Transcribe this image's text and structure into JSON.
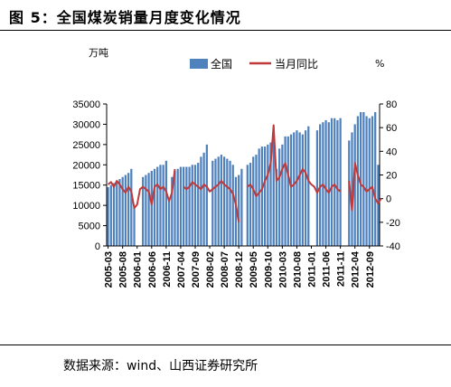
{
  "title": "图 5：全国煤炭销量月度变化情况",
  "source": "数据来源：wind、山西证券研究所",
  "colors": {
    "bar": "#4F81BD",
    "line": "#C0393B",
    "axis": "#000000"
  },
  "chart_data": {
    "type": "bar",
    "y_unit_left": "万吨",
    "y_unit_right": "%",
    "legend": [
      "全国",
      "当月同比"
    ],
    "legend_placement": "top-center",
    "grid": false,
    "ylim_left": [
      0,
      35000
    ],
    "yticks_left": [
      "0",
      "5000",
      "10000",
      "15000",
      "20000",
      "25000",
      "30000",
      "35000"
    ],
    "ylim_right": [
      -40,
      80
    ],
    "yticks_right": [
      "-40",
      "-20",
      "0",
      "20",
      "40",
      "60",
      "80"
    ],
    "category_labels": [
      "2005-03",
      "2005-08",
      "2006-01",
      "2006-06",
      "2006-11",
      "2007-04",
      "2007-09",
      "2008-02",
      "2008-07",
      "2008-12",
      "2009-05",
      "2009-10",
      "2010-03",
      "2010-08",
      "2011-01",
      "2011-06",
      "2011-11",
      "2012-04",
      "2012-09"
    ],
    "x_start": "2005-03",
    "series": [
      {
        "name": "全国",
        "type": "bar",
        "axis": "left",
        "values": [
          14500,
          15000,
          15500,
          16000,
          16500,
          17000,
          17500,
          18000,
          19000,
          9500,
          15500,
          16000,
          17000,
          17500,
          18000,
          18500,
          19000,
          19500,
          20000,
          20000,
          21000,
          11500,
          17000,
          18500,
          19000,
          19500,
          19500,
          19500,
          19500,
          20000,
          20000,
          20500,
          22000,
          23000,
          25000,
          12500,
          21000,
          21500,
          22000,
          22500,
          22000,
          21500,
          21000,
          20000,
          17000,
          17500,
          19000,
          8500,
          20000,
          20500,
          22000,
          22500,
          24000,
          24500,
          24500,
          25000,
          25500,
          26500,
          19000,
          24000,
          25000,
          27000,
          27000,
          27500,
          28000,
          28500,
          28000,
          27500,
          28500,
          29500,
          17500,
          20500,
          28500,
          30000,
          30500,
          31000,
          30500,
          31500,
          31500,
          31000,
          31500,
          31000,
          10000,
          26000,
          28000,
          30000,
          32000,
          33000,
          33000,
          32000,
          31500,
          32000,
          33000,
          20000
        ],
        "gaps": [
          10,
          11,
          35,
          47,
          70,
          71,
          81,
          82
        ]
      },
      {
        "name": "当月同比",
        "type": "line",
        "axis": "right",
        "values": [
          12,
          14,
          10,
          15,
          12,
          8,
          5,
          10,
          6,
          -8,
          -5,
          8,
          10,
          8,
          6,
          -5,
          10,
          12,
          8,
          10,
          6,
          -2,
          5,
          25,
          15,
          12,
          10,
          8,
          10,
          14,
          12,
          10,
          8,
          12,
          10,
          6,
          8,
          10,
          12,
          15,
          12,
          10,
          8,
          4,
          -5,
          -20,
          -5,
          5,
          10,
          12,
          8,
          2,
          5,
          8,
          15,
          20,
          30,
          62,
          15,
          18,
          25,
          30,
          20,
          10,
          12,
          15,
          20,
          25,
          22,
          15,
          12,
          10,
          5,
          10,
          12,
          8,
          5,
          10,
          12,
          8,
          6,
          10,
          8,
          15,
          -10,
          30,
          20,
          12,
          10,
          6,
          8,
          10,
          0,
          -4,
          0
        ],
        "gaps": [
          24,
          25,
          46,
          47,
          81,
          82
        ]
      }
    ]
  }
}
